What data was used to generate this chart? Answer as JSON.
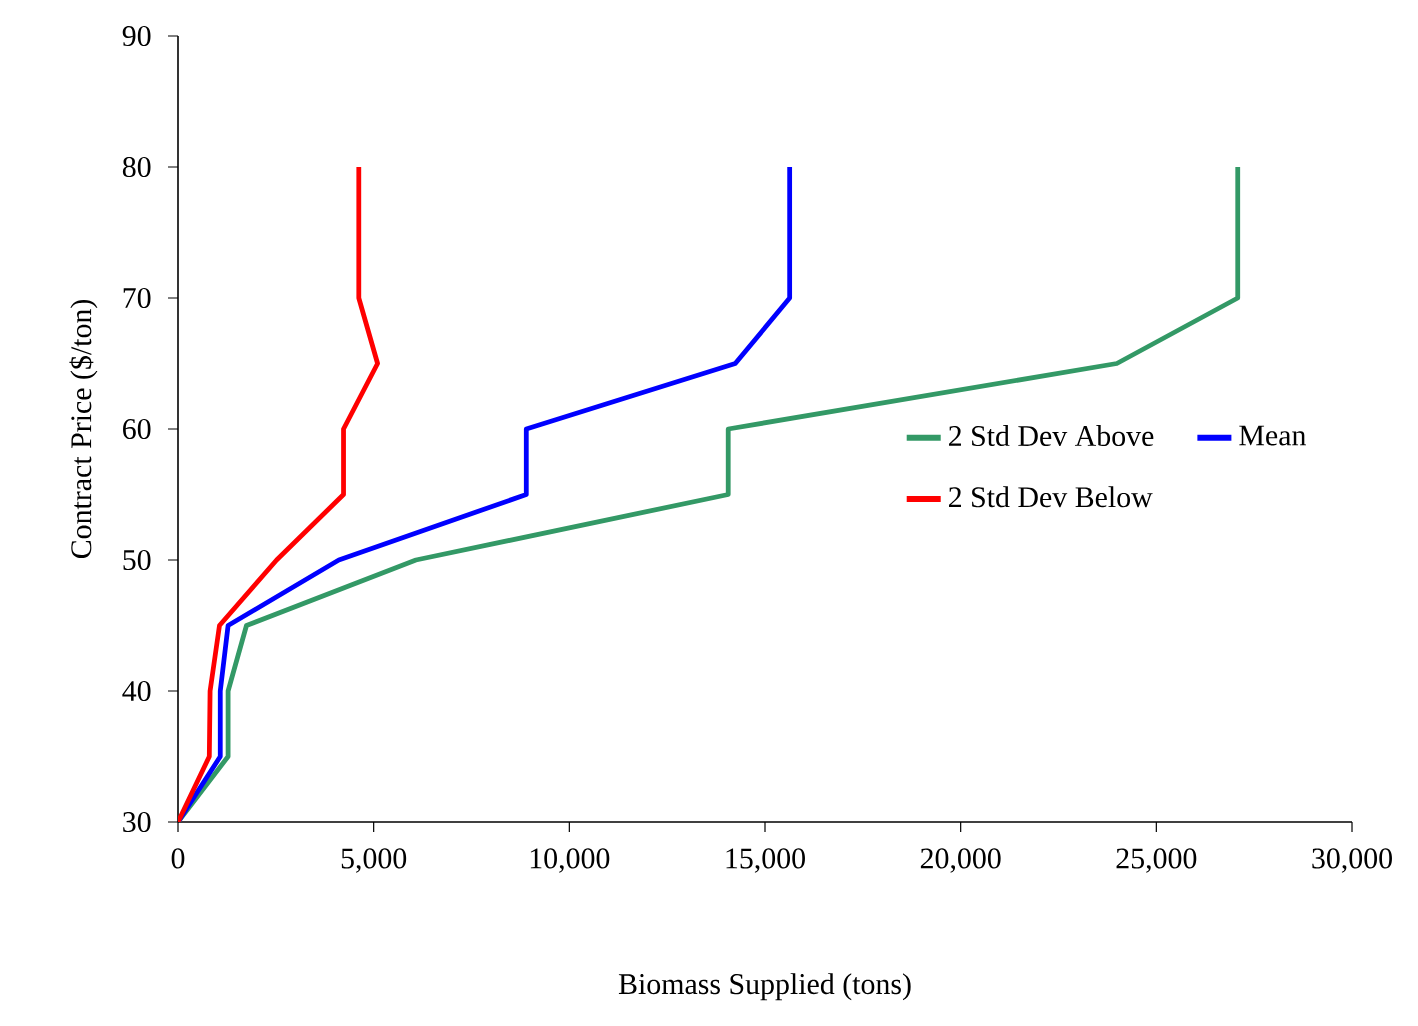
{
  "chart_data": {
    "type": "line",
    "xlabel": "Biomass Supplied (tons)",
    "ylabel": "Contract Price ($/ton)",
    "xlim": [
      0,
      30000
    ],
    "ylim": [
      30,
      90
    ],
    "xticks": [
      0,
      {
        "value": 5000,
        "label": "5,000"
      },
      {
        "value": 10000,
        "label": "10,000"
      },
      {
        "value": 15000,
        "label": "15,000"
      },
      {
        "value": 20000,
        "label": "20,000"
      },
      {
        "value": 25000,
        "label": "25,000"
      },
      {
        "value": 30000,
        "label": "30,000"
      }
    ],
    "yticks": [
      30,
      40,
      50,
      60,
      70,
      80,
      90
    ],
    "grid": false,
    "legend": "right",
    "marker": "none",
    "line_style": "solid",
    "series": [
      {
        "name": "2 Std Dev Above",
        "color": "#339966",
        "x": [
          0,
          1280,
          1280,
          1750,
          6080,
          14060,
          14060,
          23990,
          27080,
          27080
        ],
        "values": [
          30,
          35,
          40,
          45,
          50,
          55,
          60,
          65,
          70,
          80
        ]
      },
      {
        "name": "Mean",
        "color": "#0000ff",
        "x": [
          0,
          1080,
          1080,
          1280,
          4110,
          8900,
          8900,
          14240,
          15630,
          15630
        ],
        "values": [
          30,
          35,
          40,
          45,
          50,
          55,
          60,
          65,
          70,
          80
        ]
      },
      {
        "name": "2 Std Dev Below",
        "color": "#ff0000",
        "x": [
          0,
          800,
          820,
          1060,
          2520,
          4230,
          4230,
          5100,
          4620,
          4620
        ],
        "values": [
          30,
          35,
          40,
          45,
          50,
          55,
          60,
          65,
          70,
          80
        ]
      }
    ]
  }
}
